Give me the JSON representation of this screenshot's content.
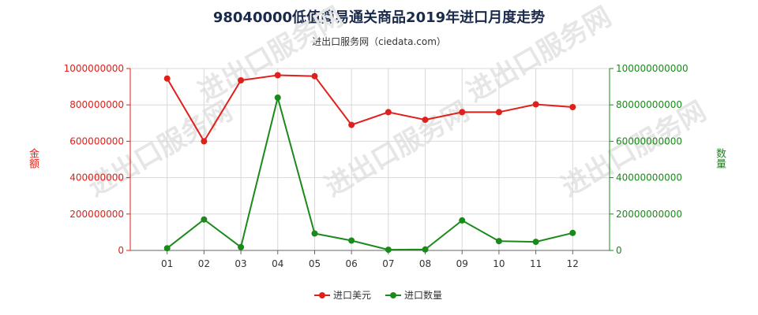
{
  "chart_data": {
    "type": "line",
    "title": "98040000低值简易通关商品2019年进口月度走势",
    "subtitle": "进出口服务网（ciedata.com）",
    "categories": [
      "01",
      "02",
      "03",
      "04",
      "05",
      "06",
      "07",
      "08",
      "09",
      "10",
      "11",
      "12"
    ],
    "left_axis": {
      "label": "金额",
      "range": [
        0,
        1000000000
      ],
      "ticks": [
        "0",
        "200000000",
        "400000000",
        "600000000",
        "800000000",
        "1000000000"
      ],
      "color": "#e0201a"
    },
    "right_axis": {
      "label": "数量",
      "range": [
        0,
        100000000000
      ],
      "ticks": [
        "0",
        "20000000000",
        "40000000000",
        "60000000000",
        "80000000000",
        "100000000000"
      ],
      "color": "#1a8a1a"
    },
    "series": [
      {
        "name": "进口美元",
        "axis": "left",
        "color": "#e0201a",
        "values": [
          945000000,
          600000000,
          935000000,
          963000000,
          958000000,
          690000000,
          760000000,
          718000000,
          760000000,
          760000000,
          803000000,
          788000000
        ]
      },
      {
        "name": "进口数量",
        "axis": "right",
        "color": "#1a8a1a",
        "values": [
          1200000000,
          17000000000,
          1800000000,
          84000000000,
          9300000000,
          5400000000,
          400000000,
          500000000,
          16500000000,
          5100000000,
          4700000000,
          9600000000
        ]
      }
    ],
    "grid": true,
    "legend_position": "bottom-center",
    "watermark": "进出口服务网"
  }
}
